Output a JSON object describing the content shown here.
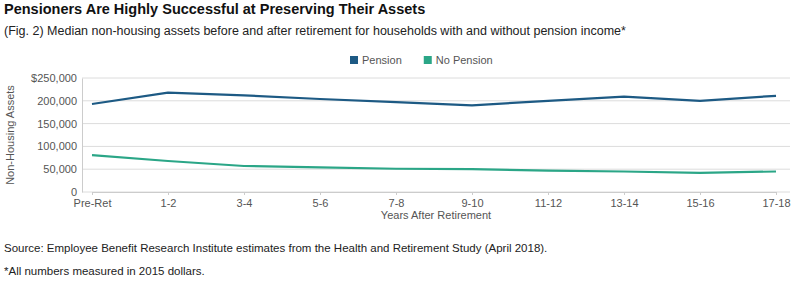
{
  "chart_data": {
    "type": "line",
    "title": "Pensioners Are Highly Successful at Preserving Their Assets",
    "subtitle": "(Fig. 2) Median non-housing assets before and after retirement for households with and without pension income*",
    "x_label": "Years After Retirement",
    "y_label": "Non-Housing Assets",
    "source": "Source: Employee Benefit Research Institute estimates from the Health and Retirement Study (April 2018).",
    "footnote": "*All numbers measured in 2015 dollars.",
    "categories": [
      "Pre-Ret",
      "1-2",
      "3-4",
      "5-6",
      "7-8",
      "9-10",
      "11-12",
      "13-14",
      "15-16",
      "17-18"
    ],
    "series": [
      {
        "name": "Pension",
        "color": "#1d5a84",
        "values": [
          193000,
          218000,
          212000,
          204000,
          197000,
          190000,
          200000,
          209000,
          200000,
          211000
        ]
      },
      {
        "name": "No Pension",
        "color": "#2ba687",
        "values": [
          81000,
          68000,
          57000,
          54000,
          51000,
          50000,
          47000,
          45000,
          42000,
          45000
        ]
      }
    ],
    "ylim": [
      0,
      250000
    ],
    "yticks": [
      0,
      {
        "value": 50000,
        "label": "50,000"
      },
      {
        "value": 100000,
        "label": "100,000"
      },
      {
        "value": 150000,
        "label": "150,000"
      },
      {
        "value": 200000,
        "label": "200,000"
      },
      {
        "value": 250000,
        "label": "$250,000"
      }
    ],
    "grid": true,
    "legend": "top"
  }
}
